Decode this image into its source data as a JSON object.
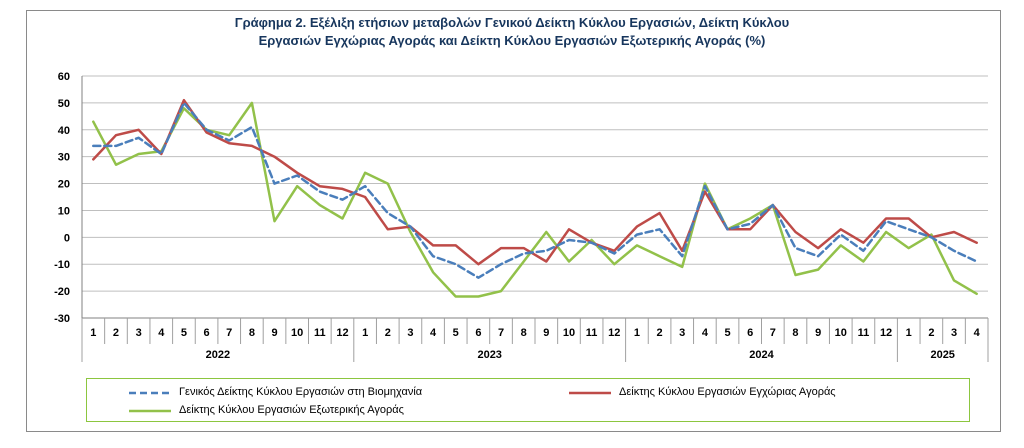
{
  "title_lines": [
    "Γράφημα 2. Εξέλιξη ετήσιων μεταβολών Γενικού Δείκτη Κύκλου Εργασιών,  Δείκτη Κύκλου",
    "Εργασιών Εγχώριας Αγοράς και Δείκτη Κύκλου Εργασιών Εξωτερικής Αγοράς  (%)"
  ],
  "chart_data": {
    "type": "line",
    "title": "Γράφημα 2. Εξέλιξη ετήσιων μεταβολών Γενικού Δείκτη Κύκλου Εργασιών,  Δείκτη Κύκλου Εργασιών Εγχώριας Αγοράς και Δείκτη Κύκλου Εργασιών Εξωτερικής Αγοράς  (%)",
    "ylim": [
      -30,
      60
    ],
    "yticks": [
      -30,
      -20,
      -10,
      0,
      10,
      20,
      30,
      40,
      50,
      60
    ],
    "grid": "horizontal",
    "legend_position": "bottom",
    "categories": [
      "1",
      "2",
      "3",
      "4",
      "5",
      "6",
      "7",
      "8",
      "9",
      "10",
      "11",
      "12",
      "1",
      "2",
      "3",
      "4",
      "5",
      "6",
      "7",
      "8",
      "9",
      "10",
      "11",
      "12",
      "1",
      "2",
      "3",
      "4",
      "5",
      "6",
      "7",
      "8",
      "9",
      "10",
      "11",
      "12",
      "1",
      "2",
      "3",
      "4"
    ],
    "year_groups": [
      {
        "label": "2022",
        "count": 12
      },
      {
        "label": "2023",
        "count": 12
      },
      {
        "label": "2024",
        "count": 12
      },
      {
        "label": "2025",
        "count": 4
      }
    ],
    "series": [
      {
        "name": "Γενικός Δείκτης Κύκλου Εργασιών στη Βιομηχανία",
        "color": "#4a7ebb",
        "style": "dashed",
        "values": [
          34,
          34,
          37,
          31,
          50,
          40,
          36,
          41,
          20,
          23,
          17,
          14,
          19,
          9,
          4,
          -7,
          -10,
          -15,
          -10,
          -6,
          -5,
          -1,
          -2,
          -6,
          1,
          3,
          -7,
          19,
          3,
          5,
          12,
          -4,
          -7,
          1,
          -5,
          6,
          3,
          0,
          -5,
          -9
        ]
      },
      {
        "name": "Δείκτης Κύκλου Εργασιών  Εγχώριας Αγοράς",
        "color": "#be4b48",
        "style": "solid",
        "values": [
          29,
          38,
          40,
          31,
          51,
          39,
          35,
          34,
          30,
          24,
          19,
          18,
          15,
          3,
          4,
          -3,
          -3,
          -10,
          -4,
          -4,
          -9,
          3,
          -2,
          -5,
          4,
          9,
          -5,
          17,
          3,
          3,
          12,
          2,
          -4,
          3,
          -2,
          7,
          7,
          0,
          2,
          -2
        ]
      },
      {
        "name": "Δείκτης Κύκλου Εργασιών  Εξωτερικής Αγοράς",
        "color": "#92c14a",
        "style": "solid",
        "values": [
          43,
          27,
          31,
          32,
          48,
          40,
          38,
          50,
          6,
          19,
          12,
          7,
          24,
          20,
          2,
          -13,
          -22,
          -22,
          -20,
          -9,
          2,
          -9,
          -1,
          -10,
          -3,
          -7,
          -11,
          20,
          3,
          7,
          12,
          -14,
          -12,
          -3,
          -9,
          2,
          -4,
          1,
          -16,
          -21
        ]
      }
    ]
  },
  "legend": {
    "item1": "Γενικός Δείκτης Κύκλου Εργασιών στη Βιομηχανία",
    "item2": "Δείκτης Κύκλου Εργασιών  Εγχώριας Αγοράς",
    "item3": "Δείκτης Κύκλου Εργασιών  Εξωτερικής Αγοράς"
  }
}
